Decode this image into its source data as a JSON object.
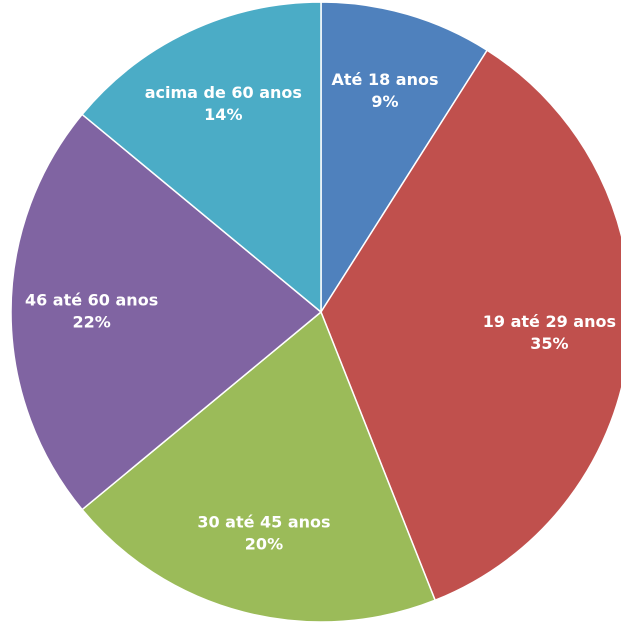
{
  "chart_data": {
    "type": "pie",
    "categories": [
      "Até 18 anos",
      "19 até 29 anos",
      "30 até 45 anos",
      "46 até 60 anos",
      "acima de 60 anos"
    ],
    "values": [
      9,
      35,
      20,
      22,
      14
    ],
    "value_labels": [
      "9%",
      "35%",
      "20%",
      "22%",
      "14%"
    ],
    "colors": [
      "#4f81bd",
      "#c0504d",
      "#9bbb59",
      "#8064a2",
      "#4bacc6"
    ]
  }
}
